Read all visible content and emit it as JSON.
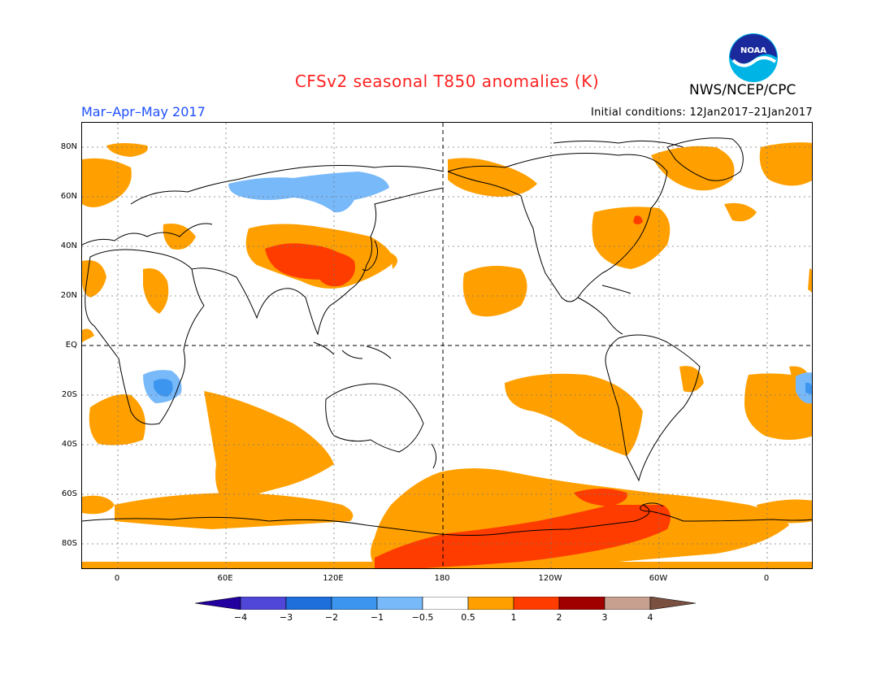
{
  "header": {
    "title": "CFSv2 seasonal T850 anomalies (K)",
    "org": "NWS/NCEP/CPC",
    "season": "Mar–Apr–May 2017",
    "initial_conditions": "Initial conditions: 12Jan2017–21Jan2017",
    "logo_text": "NOAA"
  },
  "map": {
    "lat_labels": [
      "80N",
      "60N",
      "40N",
      "20N",
      "EQ",
      "20S",
      "40S",
      "60S",
      "80S"
    ],
    "lon_labels": [
      "0",
      "60E",
      "120E",
      "180",
      "120W",
      "60W",
      "0"
    ]
  },
  "colorbar": {
    "ticks": [
      "−4",
      "−3",
      "−2",
      "−1",
      "−0.5",
      "0.5",
      "1",
      "2",
      "3",
      "4"
    ],
    "colors": [
      "#2200a0",
      "#5046d8",
      "#1e6edc",
      "#3c96f0",
      "#78b9fa",
      "#ffffff",
      "#ffa000",
      "#ff3c00",
      "#a00000",
      "#c8a090",
      "#7a5040"
    ]
  }
}
